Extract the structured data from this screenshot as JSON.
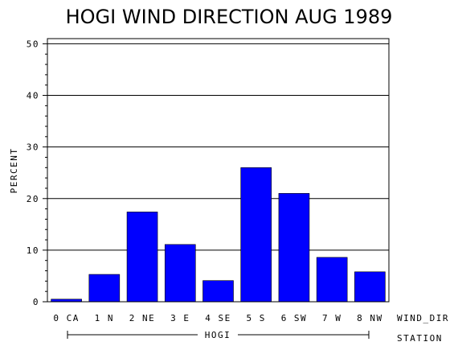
{
  "chart_data": {
    "type": "bar",
    "title": "HOGI WIND DIRECTION AUG 1989",
    "ylabel": "PERCENT",
    "xlabel": "WIND_DIR",
    "group_axis_label": "STATION",
    "group_name": "HOGI",
    "categories": [
      "0 CA",
      "1 N",
      "2 NE",
      "3 E",
      "4 SE",
      "5 S",
      "6 SW",
      "7 W",
      "8 NW"
    ],
    "values": [
      0.5,
      5.3,
      17.4,
      11.1,
      4.1,
      26.0,
      21.0,
      8.6,
      5.8
    ],
    "ylim": [
      0,
      51
    ],
    "yticks": [
      "0",
      "10",
      "20",
      "30",
      "40",
      "50"
    ],
    "grid": true,
    "bar_color": "#0000ff"
  }
}
